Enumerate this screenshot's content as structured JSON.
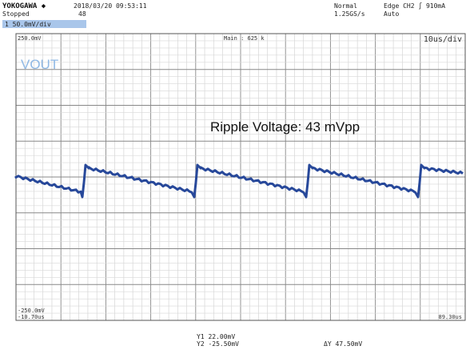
{
  "header": {
    "brand": "YOKOGAWA ◆",
    "timestamp": "2018/03/20 09:53:11",
    "status": "Stopped",
    "record": "48",
    "mode": "Normal",
    "sample_rate": "1.25GS/s",
    "trigger": "Edge CH2 ∫ 910mA",
    "trigger_mode": "Auto",
    "channel": "1  50.0mV/div"
  },
  "screen": {
    "top_level": "250.0mV",
    "zoom": "Main : 625 k",
    "timebase": "10us/div",
    "label": "VOUT",
    "annotation": "Ripple Voltage: 43 mVpp",
    "bottom_level": "-250.0mV",
    "start_time": "-10.70us",
    "end_time": "89.30us"
  },
  "cursors": {
    "y1": "Y1  22.00mV",
    "y2": "Y2 -25.50mV",
    "delta": "ΔY  47.50mV"
  }
}
